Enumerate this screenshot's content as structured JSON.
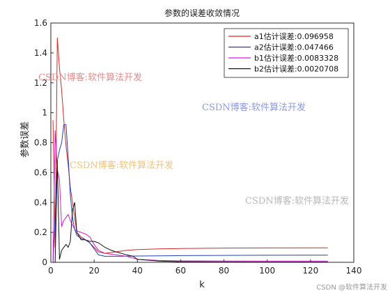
{
  "chart_data": {
    "type": "line",
    "title": "参数的误差收敛情况",
    "xlabel": "k",
    "ylabel": "参数误差",
    "xlim": [
      0,
      140
    ],
    "ylim": [
      0,
      1.6
    ],
    "xticks": [
      0,
      20,
      40,
      60,
      80,
      100,
      120,
      140
    ],
    "yticks": [
      0,
      0.2,
      0.4,
      0.6,
      0.8,
      1,
      1.2,
      1.4,
      1.6
    ],
    "xtick_labels": [
      "0",
      "20",
      "40",
      "60",
      "80",
      "100",
      "120",
      "140"
    ],
    "ytick_labels": [
      "0",
      "0.2",
      "0.4",
      "0.6",
      "0.8",
      "1",
      "1.2",
      "1.4",
      "1.6"
    ],
    "grid": false,
    "legend_position": "top-right",
    "series": [
      {
        "name": "a1估计误差:0.096958",
        "color": "#d62728",
        "points": [
          [
            1,
            0.95
          ],
          [
            2,
            0.1
          ],
          [
            3,
            1.5
          ],
          [
            4,
            1.3
          ],
          [
            5,
            1.15
          ],
          [
            6,
            0.95
          ],
          [
            7,
            0.78
          ],
          [
            8,
            0.65
          ],
          [
            9,
            0.5
          ],
          [
            10,
            0.4
          ],
          [
            11,
            0.3
          ],
          [
            12,
            0.2
          ],
          [
            14,
            0.17
          ],
          [
            16,
            0.15
          ],
          [
            18,
            0.13
          ],
          [
            20,
            0.1
          ],
          [
            22,
            0.07
          ],
          [
            25,
            0.06
          ],
          [
            30,
            0.07
          ],
          [
            35,
            0.08
          ],
          [
            40,
            0.085
          ],
          [
            50,
            0.09
          ],
          [
            60,
            0.092
          ],
          [
            80,
            0.095
          ],
          [
            100,
            0.096
          ],
          [
            128,
            0.097
          ]
        ]
      },
      {
        "name": "a2估计误差:0.047466",
        "color": "#1f3fbf",
        "points": [
          [
            1,
            0.0
          ],
          [
            2,
            0.3
          ],
          [
            3,
            0.68
          ],
          [
            4,
            0.75
          ],
          [
            5,
            0.8
          ],
          [
            6,
            0.92
          ],
          [
            7,
            0.92
          ],
          [
            8,
            0.7
          ],
          [
            9,
            0.45
          ],
          [
            10,
            0.3
          ],
          [
            11,
            0.22
          ],
          [
            12,
            0.18
          ],
          [
            14,
            0.16
          ],
          [
            16,
            0.15
          ],
          [
            18,
            0.13
          ],
          [
            20,
            0.09
          ],
          [
            22,
            0.05
          ],
          [
            25,
            0.04
          ],
          [
            30,
            0.04
          ],
          [
            40,
            0.042
          ],
          [
            60,
            0.045
          ],
          [
            80,
            0.046
          ],
          [
            100,
            0.047
          ],
          [
            128,
            0.0475
          ]
        ]
      },
      {
        "name": "b1估计误差:0.0083328",
        "color": "#d419d4",
        "points": [
          [
            1,
            0.0
          ],
          [
            2,
            0.88
          ],
          [
            3,
            0.62
          ],
          [
            4,
            0.55
          ],
          [
            5,
            0.24
          ],
          [
            6,
            0.28
          ],
          [
            7,
            0.3
          ],
          [
            8,
            0.32
          ],
          [
            9,
            0.28
          ],
          [
            10,
            0.25
          ],
          [
            11,
            0.22
          ],
          [
            12,
            0.21
          ],
          [
            14,
            0.2
          ],
          [
            16,
            0.19
          ],
          [
            18,
            0.17
          ],
          [
            20,
            0.12
          ],
          [
            22,
            0.08
          ],
          [
            25,
            0.06
          ],
          [
            30,
            0.05
          ],
          [
            35,
            0.04
          ],
          [
            40,
            0.02
          ],
          [
            50,
            0.012
          ],
          [
            60,
            0.01
          ],
          [
            80,
            0.009
          ],
          [
            100,
            0.0085
          ],
          [
            128,
            0.0083
          ]
        ]
      },
      {
        "name": "b2估计误差:0.0020708",
        "color": "#111111",
        "points": [
          [
            1,
            0.0
          ],
          [
            2,
            0.0
          ],
          [
            3,
            0.68
          ],
          [
            4,
            0.02
          ],
          [
            5,
            0.08
          ],
          [
            6,
            0.1
          ],
          [
            7,
            0.12
          ],
          [
            8,
            0.1
          ],
          [
            9,
            0.14
          ],
          [
            10,
            0.35
          ],
          [
            11,
            0.4
          ],
          [
            12,
            0.2
          ],
          [
            14,
            0.15
          ],
          [
            16,
            0.15
          ],
          [
            18,
            0.14
          ],
          [
            20,
            0.14
          ],
          [
            22,
            0.13
          ],
          [
            25,
            0.1
          ],
          [
            28,
            0.08
          ],
          [
            30,
            0.07
          ],
          [
            35,
            0.05
          ],
          [
            38,
            0.04
          ],
          [
            40,
            0.02
          ],
          [
            50,
            0.008
          ],
          [
            60,
            0.004
          ],
          [
            80,
            0.003
          ],
          [
            100,
            0.0025
          ],
          [
            128,
            0.0021
          ]
        ]
      }
    ]
  },
  "watermarks": [
    {
      "text": "CSDN博客:软件算法开发",
      "color": "#f08a8a"
    },
    {
      "text": "CSDN博客:软件算法开发",
      "color": "#8a9ae8"
    },
    {
      "text": "CSDN博客:软件算法开发",
      "color": "#f5c27a"
    },
    {
      "text": "CSDN博客:软件算法开发",
      "color": "#b8b8b8"
    }
  ],
  "credit": "CSDN @软件算法开发"
}
